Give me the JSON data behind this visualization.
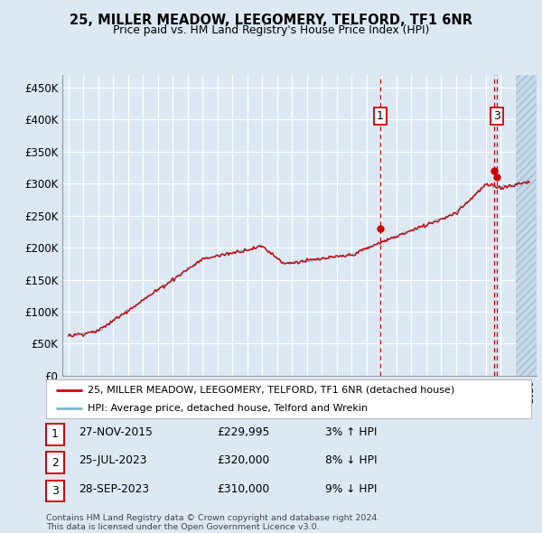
{
  "title": "25, MILLER MEADOW, LEEGOMERY, TELFORD, TF1 6NR",
  "subtitle": "Price paid vs. HM Land Registry's House Price Index (HPI)",
  "ylim": [
    0,
    470000
  ],
  "yticks": [
    0,
    50000,
    100000,
    150000,
    200000,
    250000,
    300000,
    350000,
    400000,
    450000
  ],
  "ytick_labels": [
    "£0",
    "£50K",
    "£100K",
    "£150K",
    "£200K",
    "£250K",
    "£300K",
    "£350K",
    "£400K",
    "£450K"
  ],
  "background_color": "#dce9f5",
  "grid_color": "#ffffff",
  "line_color_red": "#cc0000",
  "line_color_blue": "#7ab3d4",
  "legend_label_red": "25, MILLER MEADOW, LEEGOMERY, TELFORD, TF1 6NR (detached house)",
  "legend_label_blue": "HPI: Average price, detached house, Telford and Wrekin",
  "sale1_date": "27-NOV-2015",
  "sale1_price": 229995,
  "sale1_hpi": "3% ↑ HPI",
  "sale1_year": 2015.92,
  "sale2_date": "25-JUL-2023",
  "sale2_price": 320000,
  "sale2_hpi": "8% ↓ HPI",
  "sale2_year": 2023.56,
  "sale3_date": "28-SEP-2023",
  "sale3_price": 310000,
  "sale3_hpi": "9% ↓ HPI",
  "sale3_year": 2023.75,
  "footer_text": "Contains HM Land Registry data © Crown copyright and database right 2024.\nThis data is licensed under the Open Government Licence v3.0."
}
